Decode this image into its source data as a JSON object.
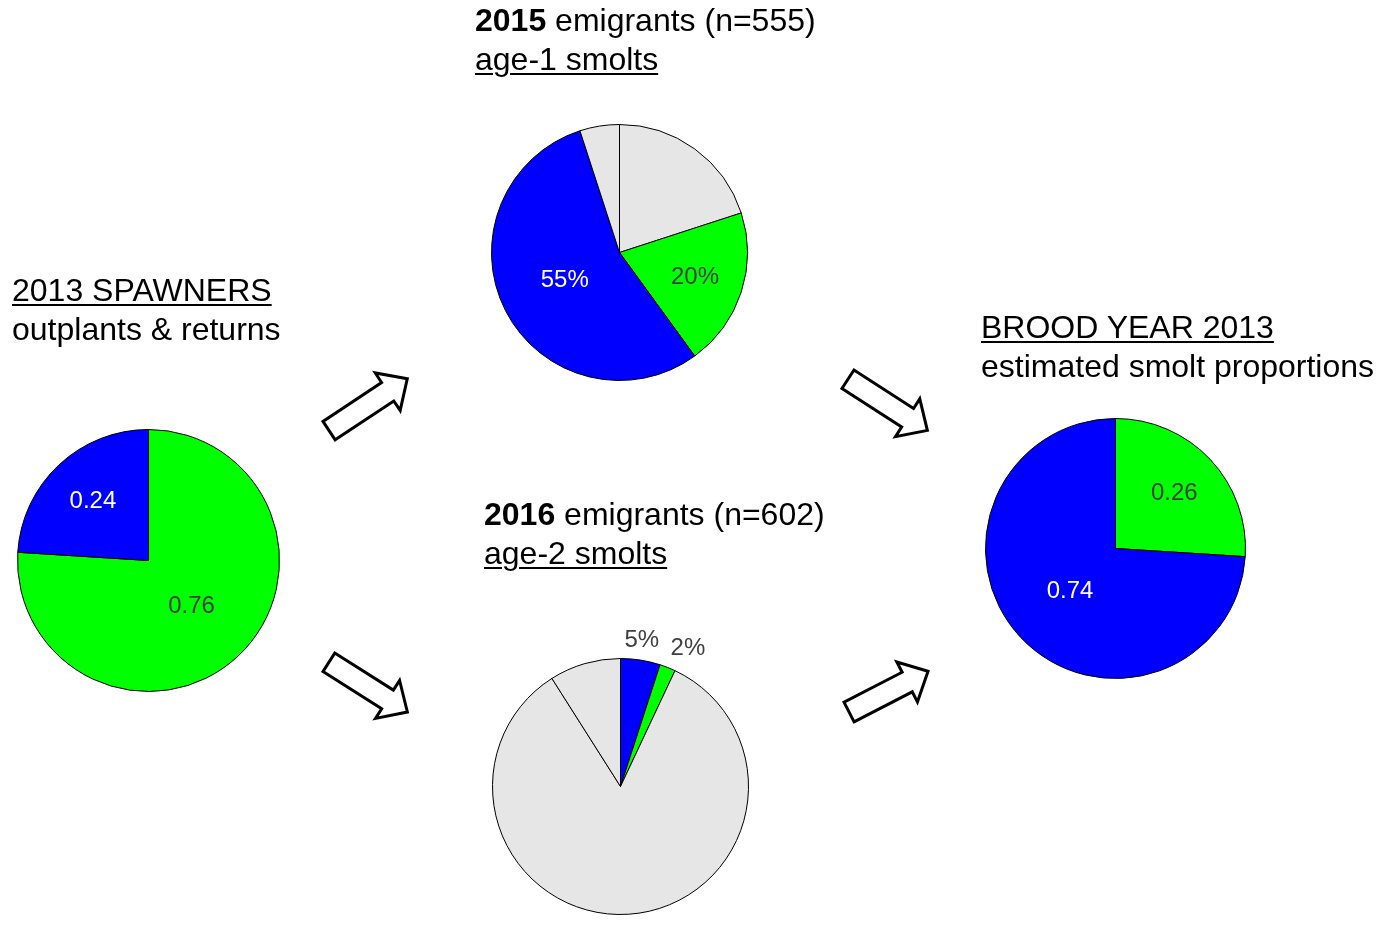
{
  "chart_data": [
    {
      "type": "pie",
      "title": "2013 SPAWNERS",
      "subtitle": "outplants & returns",
      "categories": [
        null,
        null
      ],
      "values": [
        0.76,
        0.24
      ],
      "colors": [
        "#00ff00",
        "#0000ff"
      ],
      "data_labels": true
    },
    {
      "type": "pie",
      "title": "2015 emigrants (n=555)",
      "subtitle": "age-1 smolts",
      "categories": [
        null,
        null,
        null,
        null
      ],
      "values": [
        20,
        20,
        55,
        5
      ],
      "colors": [
        "#e6e6e6",
        "#00ff00",
        "#0000ff",
        "#e6e6e6"
      ],
      "value_labels": [
        null,
        "20%",
        "55%",
        null
      ]
    },
    {
      "type": "pie",
      "title": "2016 emigrants (n=602)",
      "subtitle": "age-2 smolts",
      "categories": [
        null,
        null,
        null,
        null
      ],
      "values": [
        5,
        2,
        84,
        9
      ],
      "colors": [
        "#0000ff",
        "#00ff00",
        "#e6e6e6",
        "#e6e6e6"
      ],
      "value_labels": [
        "5%",
        "2%",
        null,
        null
      ]
    },
    {
      "type": "pie",
      "title": "BROOD YEAR 2013",
      "subtitle": "estimated smolt proportions",
      "categories": [
        null,
        null
      ],
      "values": [
        0.26,
        0.74
      ],
      "colors": [
        "#00ff00",
        "#0000ff"
      ],
      "data_labels": true
    }
  ]
}
